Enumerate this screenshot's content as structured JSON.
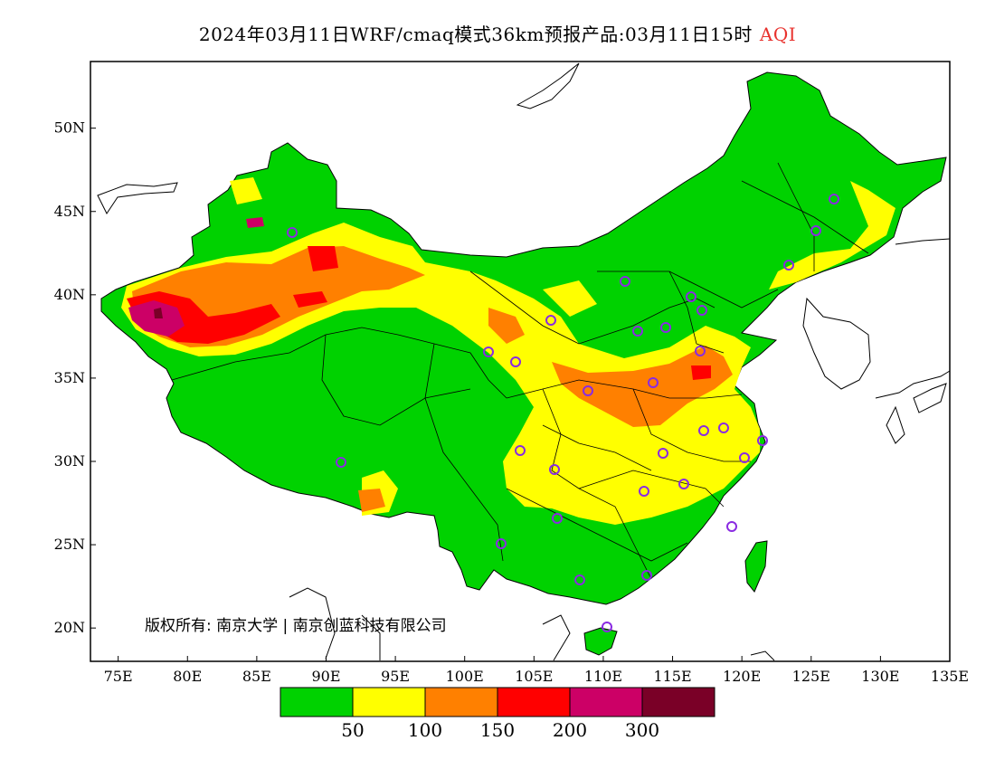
{
  "title": {
    "text": "2024年03月11日WRF/cmaq模式36km预报产品:03月11日15时",
    "variable": "AQI"
  },
  "map": {
    "lon_range": [
      73,
      135
    ],
    "lat_range": [
      18,
      54
    ],
    "lon_ticks": [
      "75E",
      "80E",
      "85E",
      "90E",
      "95E",
      "100E",
      "105E",
      "110E",
      "115E",
      "120E",
      "125E",
      "130E",
      "135E"
    ],
    "lat_ticks": [
      "20N",
      "25N",
      "30N",
      "35N",
      "40N",
      "45N",
      "50N"
    ],
    "copyright": "版权所有: 南京大学 | 南京创蓝科技有限公司"
  },
  "legend": {
    "colors": [
      "#00d200",
      "#ffff00",
      "#ff8000",
      "#ff0000",
      "#cc0066",
      "#7a0027"
    ],
    "labels": [
      "50",
      "100",
      "150",
      "200",
      "300"
    ]
  },
  "colors": {
    "good": "#00d200",
    "moderate": "#ffff00",
    "usg": "#ff8000",
    "unhealthy": "#ff0000",
    "very_unhealthy": "#cc0066",
    "hazardous": "#7a0027",
    "station_marker": "#8a2be2"
  }
}
